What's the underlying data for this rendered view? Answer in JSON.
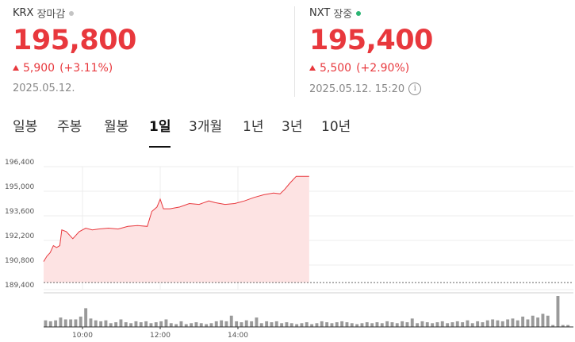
{
  "krx": {
    "name": "KRX",
    "state": "장마감",
    "price": "195,800",
    "change": "5,900",
    "change_pct": "(+3.11%)",
    "date": "2025.05.12.",
    "dot_color": "#c4c4c4"
  },
  "nxt": {
    "name": "NXT",
    "state": "장중",
    "price": "195,400",
    "change": "5,500",
    "change_pct": "(+2.90%)",
    "date": "2025.05.12. 15:20",
    "info_icon": "info-icon",
    "dot_color": "#2bb573"
  },
  "colors": {
    "up": "#e8383d",
    "area_fill": "#fde3e3",
    "volume_bar": "#9a9a9a"
  },
  "tabs": [
    {
      "label": "일봉",
      "active": false
    },
    {
      "label": "주봉",
      "active": false
    },
    {
      "label": "월봉",
      "active": false
    },
    {
      "label": "1일",
      "active": true
    },
    {
      "label": "3개월",
      "active": false
    },
    {
      "label": "1년",
      "active": false
    },
    {
      "label": "3년",
      "active": false
    },
    {
      "label": "10년",
      "active": false
    }
  ],
  "chart_data": {
    "type": "area",
    "x_start": "09:00",
    "x_end": "15:20",
    "xticks": [
      "10:00",
      "12:00",
      "14:00"
    ],
    "yticks": [
      "196,400",
      "195,000",
      "193,600",
      "192,200",
      "190,800",
      "189,400"
    ],
    "ylim": [
      189400,
      196400
    ],
    "base_value": 189800,
    "price_points": [
      [
        "09:00",
        191000
      ],
      [
        "09:05",
        191300
      ],
      [
        "09:10",
        191500
      ],
      [
        "09:15",
        191900
      ],
      [
        "09:20",
        191800
      ],
      [
        "09:25",
        191900
      ],
      [
        "09:28",
        192800
      ],
      [
        "09:35",
        192700
      ],
      [
        "09:45",
        192300
      ],
      [
        "09:55",
        192700
      ],
      [
        "10:05",
        192900
      ],
      [
        "10:15",
        192800
      ],
      [
        "10:25",
        192850
      ],
      [
        "10:40",
        192900
      ],
      [
        "10:55",
        192850
      ],
      [
        "11:10",
        193000
      ],
      [
        "11:25",
        193050
      ],
      [
        "11:40",
        193000
      ],
      [
        "11:47",
        193850
      ],
      [
        "11:55",
        194100
      ],
      [
        "12:00",
        194550
      ],
      [
        "12:05",
        194000
      ],
      [
        "12:15",
        194000
      ],
      [
        "12:30",
        194100
      ],
      [
        "12:45",
        194300
      ],
      [
        "13:00",
        194250
      ],
      [
        "13:15",
        194450
      ],
      [
        "13:25",
        194350
      ],
      [
        "13:40",
        194250
      ],
      [
        "13:55",
        194300
      ],
      [
        "14:10",
        194450
      ],
      [
        "14:25",
        194650
      ],
      [
        "14:40",
        194800
      ],
      [
        "14:55",
        194900
      ],
      [
        "15:05",
        194850
      ],
      [
        "15:12",
        195100
      ],
      [
        "15:20",
        195450
      ],
      [
        "15:30",
        195850
      ],
      [
        "15:40",
        195850
      ],
      [
        "15:50",
        195850
      ]
    ],
    "volume": [
      7,
      6,
      7,
      10,
      8,
      8,
      8,
      11,
      20,
      9,
      7,
      6,
      7,
      4,
      5,
      8,
      5,
      4,
      6,
      5,
      6,
      4,
      5,
      6,
      8,
      4,
      3,
      6,
      3,
      4,
      5,
      4,
      3,
      4,
      6,
      7,
      6,
      12,
      6,
      5,
      7,
      6,
      10,
      4,
      6,
      5,
      6,
      4,
      5,
      4,
      3,
      4,
      5,
      3,
      4,
      6,
      5,
      4,
      5,
      6,
      5,
      4,
      3,
      4,
      5,
      4,
      5,
      4,
      6,
      5,
      4,
      6,
      5,
      9,
      4,
      6,
      5,
      4,
      5,
      6,
      4,
      5,
      6,
      5,
      7,
      4,
      6,
      5,
      7,
      8,
      7,
      6,
      8,
      9,
      7,
      11,
      8,
      12,
      10,
      14,
      12,
      2,
      33,
      2,
      2
    ]
  }
}
